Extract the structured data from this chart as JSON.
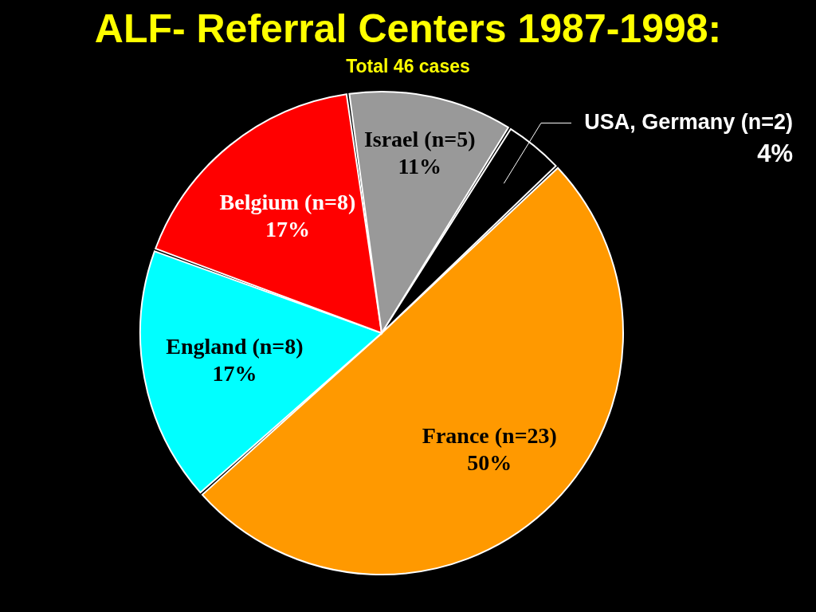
{
  "chart_data": {
    "type": "pie",
    "title": "ALF- Referral Centers 1987-1998:",
    "subtitle": "Total 46 cases",
    "categories": [
      "France (n=23)",
      "England (n=8)",
      "Belgium (n=8)",
      "Israel (n=5)",
      "USA, Germany (n=2)"
    ],
    "values": [
      50,
      17,
      17,
      11,
      4
    ],
    "value_labels": [
      "50%",
      "17%",
      "17%",
      "11%",
      "4%"
    ],
    "colors": [
      "#ff9900",
      "#00ffff",
      "#ff0000",
      "#999999",
      "#000000"
    ]
  }
}
